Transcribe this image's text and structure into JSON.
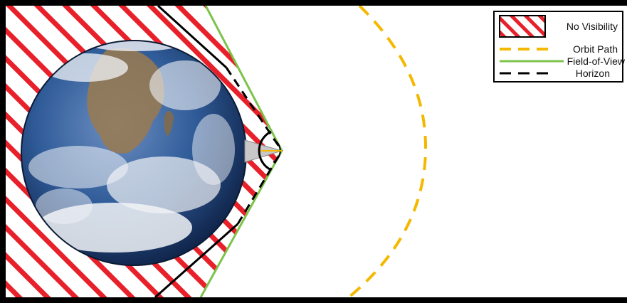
{
  "legend": {
    "no_visibility": "No Visibility",
    "orbit_path": "Orbit Path",
    "field_of_view": "Field-of-View",
    "horizon": "Horizon"
  },
  "colors": {
    "hatch": "#e8202a",
    "orbit": "#f5b800",
    "field_of_view": "#7cc34a",
    "horizon": "#000000",
    "frame": "#000000",
    "earth_ocean": "#2b5a9a",
    "earth_cloud": "#f2f4f7",
    "earth_land": "#9a7a4f"
  },
  "icons": {
    "earth": "earth-globe-icon",
    "satellite": "satellite-icon"
  }
}
